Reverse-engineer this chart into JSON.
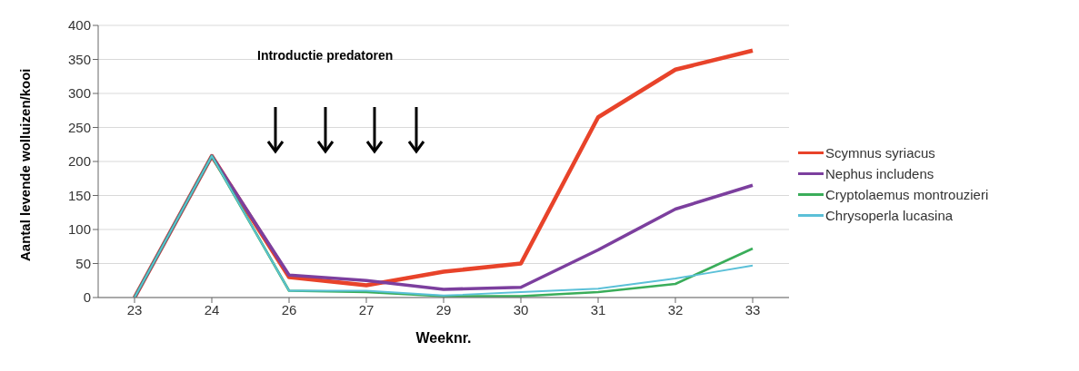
{
  "chart_data": {
    "type": "line",
    "xlabel": "Weeknr.",
    "ylabel": "Aantal levende wolluizen/kooi",
    "annotations": [
      "Introductie predatoren"
    ],
    "categories": [
      "23",
      "24",
      "26",
      "27",
      "29",
      "30",
      "31",
      "32",
      "33"
    ],
    "series": [
      {
        "name": "Scymnus syriacus",
        "color": "#e8432a",
        "values": [
          0,
          208,
          30,
          18,
          38,
          50,
          265,
          335,
          363
        ]
      },
      {
        "name": "Nephus includens",
        "color": "#7c3f9e",
        "values": [
          0,
          208,
          33,
          25,
          12,
          15,
          70,
          130,
          165
        ]
      },
      {
        "name": "Cryptolaemus montrouzieri",
        "color": "#3aad5a",
        "values": [
          0,
          208,
          10,
          8,
          2,
          2,
          8,
          20,
          72
        ]
      },
      {
        "name": "Chrysoperla lucasina",
        "color": "#5bc0d8",
        "values": [
          0,
          208,
          10,
          10,
          3,
          8,
          13,
          28,
          47
        ]
      }
    ],
    "ylim": [
      0,
      400
    ],
    "yticks": [
      0,
      50,
      100,
      150,
      200,
      250,
      300,
      350,
      400
    ],
    "grid": "y",
    "legend": "right",
    "marker": "none",
    "line_style": "solid"
  }
}
